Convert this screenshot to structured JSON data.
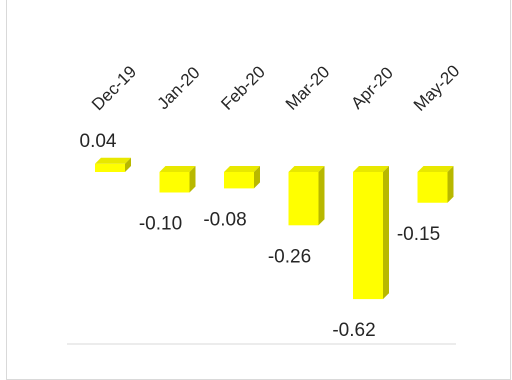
{
  "chart_data": {
    "type": "bar",
    "style": "3d-column",
    "categories": [
      "Dec-19",
      "Jan-20",
      "Feb-20",
      "Mar-20",
      "Apr-20",
      "May-20"
    ],
    "values": [
      0.04,
      -0.1,
      -0.08,
      -0.26,
      -0.62,
      -0.15
    ],
    "data_labels": [
      "0.04",
      "-0.10",
      "-0.08",
      "-0.26",
      "-0.62",
      "-0.15"
    ],
    "title": "",
    "xlabel": "",
    "ylabel": "",
    "x_axis_position": "top",
    "tick_label_rotation": "45-degrees",
    "grid": false,
    "legend": "none",
    "colors": {
      "bar_front": "#ffff00",
      "bar_top": "#e8e800",
      "bar_side": "#b8b800",
      "baseline": "#d9d9d9",
      "text": "#262626"
    }
  }
}
